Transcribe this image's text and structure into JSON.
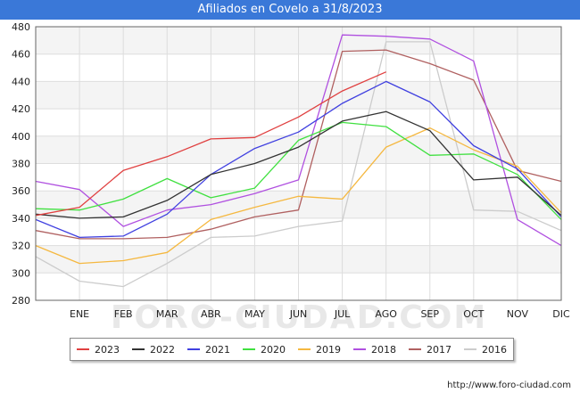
{
  "title": "Afiliados en Covelo a 31/8/2023",
  "source": "http://www.foro-ciudad.com",
  "watermark": "FORO-CIUDAD.COM",
  "chart_data": {
    "type": "line",
    "title": "Afiliados en Covelo a 31/8/2023",
    "xlabel": "",
    "ylabel": "",
    "ylim": [
      280,
      480
    ],
    "y_ticks": [
      280,
      300,
      320,
      340,
      360,
      380,
      400,
      420,
      440,
      460,
      480
    ],
    "categories": [
      "",
      "ENE",
      "FEB",
      "MAR",
      "ABR",
      "MAY",
      "JUN",
      "JUL",
      "AGO",
      "SEP",
      "OCT",
      "NOV",
      "DIC"
    ],
    "grid": true,
    "legend_position": "bottom",
    "series": [
      {
        "name": "2023",
        "color": "#e04040",
        "values": [
          342,
          348,
          375,
          385,
          398,
          399,
          414,
          433,
          447,
          null,
          null,
          null,
          null
        ]
      },
      {
        "name": "2022",
        "color": "#333333",
        "values": [
          343,
          340,
          341,
          353,
          372,
          380,
          392,
          411,
          418,
          404,
          368,
          370,
          342
        ]
      },
      {
        "name": "2021",
        "color": "#4040e0",
        "values": [
          339,
          326,
          327,
          343,
          372,
          391,
          403,
          424,
          440,
          425,
          393,
          376,
          341
        ]
      },
      {
        "name": "2020",
        "color": "#40e040",
        "values": [
          347,
          346,
          354,
          369,
          355,
          362,
          397,
          410,
          407,
          386,
          387,
          372,
          339
        ]
      },
      {
        "name": "2019",
        "color": "#f5b840",
        "values": [
          320,
          307,
          309,
          315,
          339,
          348,
          356,
          354,
          392,
          406,
          390,
          378,
          344
        ]
      },
      {
        "name": "2018",
        "color": "#b050e0",
        "values": [
          367,
          361,
          334,
          346,
          350,
          358,
          368,
          474,
          473,
          471,
          455,
          339,
          320
        ]
      },
      {
        "name": "2017",
        "color": "#b06060",
        "values": [
          331,
          325,
          325,
          326,
          332,
          341,
          346,
          462,
          463,
          453,
          441,
          375,
          367
        ]
      },
      {
        "name": "2016",
        "color": "#cccccc",
        "values": [
          312,
          294,
          290,
          307,
          326,
          327,
          334,
          338,
          469,
          469,
          346,
          345,
          331
        ]
      }
    ]
  }
}
